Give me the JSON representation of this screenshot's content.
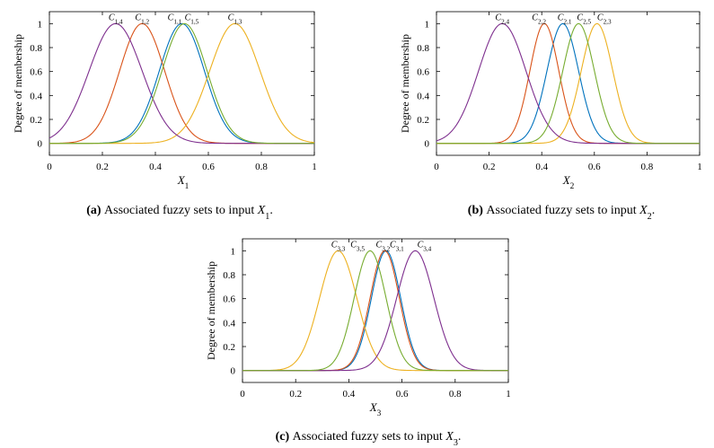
{
  "colors": [
    "#0072BD",
    "#D95319",
    "#EDB120",
    "#7E2F8E",
    "#77AC30"
  ],
  "chart_data": [
    {
      "type": "line",
      "panel_label": "(a)",
      "caption_text": "Associated fuzzy sets to input",
      "caption_var": "X",
      "caption_sub": "1",
      "caption_end": ".",
      "xlabel_var": "X",
      "xlabel_sub": "1",
      "ylabel": "Degree of membership",
      "xlim": [
        0,
        1
      ],
      "ylim": [
        -0.1,
        1.1
      ],
      "xticks": [
        "0",
        "0.2",
        "0.4",
        "0.6",
        "0.8",
        "1"
      ],
      "yticks": [
        "0",
        "0.2",
        "0.4",
        "0.6",
        "0.8",
        "1"
      ],
      "series": [
        {
          "name": "C1,1",
          "center": 0.5,
          "sigma": 0.085,
          "color": "#0072BD",
          "label_main": "C",
          "label_sub": "1,1"
        },
        {
          "name": "C1,2",
          "center": 0.35,
          "sigma": 0.085,
          "color": "#D95319",
          "label_main": "C",
          "label_sub": "1,2"
        },
        {
          "name": "C1,3",
          "center": 0.7,
          "sigma": 0.095,
          "color": "#EDB120",
          "label_main": "C",
          "label_sub": "1,3"
        },
        {
          "name": "C1,4",
          "center": 0.25,
          "sigma": 0.1,
          "color": "#7E2F8E",
          "label_main": "C",
          "label_sub": "1,4"
        },
        {
          "name": "C1,5",
          "center": 0.51,
          "sigma": 0.085,
          "color": "#77AC30",
          "label_main": "C",
          "label_sub": "1,5"
        }
      ]
    },
    {
      "type": "line",
      "panel_label": "(b)",
      "caption_text": "Associated fuzzy sets to input",
      "caption_var": "X",
      "caption_sub": "2",
      "caption_end": ".",
      "xlabel_var": "X",
      "xlabel_sub": "2",
      "ylabel": "Degree of membership",
      "xlim": [
        0,
        1
      ],
      "ylim": [
        -0.1,
        1.1
      ],
      "xticks": [
        "0",
        "0.2",
        "0.4",
        "0.6",
        "0.8",
        "1"
      ],
      "yticks": [
        "0",
        "0.2",
        "0.4",
        "0.6",
        "0.8",
        "1"
      ],
      "series": [
        {
          "name": "C2,1",
          "center": 0.48,
          "sigma": 0.06,
          "color": "#0072BD",
          "label_main": "C",
          "label_sub": "2,1"
        },
        {
          "name": "C2,2",
          "center": 0.41,
          "sigma": 0.055,
          "color": "#D95319",
          "label_main": "C",
          "label_sub": "2,2"
        },
        {
          "name": "C2,3",
          "center": 0.61,
          "sigma": 0.06,
          "color": "#EDB120",
          "label_main": "C",
          "label_sub": "2,3"
        },
        {
          "name": "C2,4",
          "center": 0.25,
          "sigma": 0.09,
          "color": "#7E2F8E",
          "label_main": "C",
          "label_sub": "2,4"
        },
        {
          "name": "C2,5",
          "center": 0.54,
          "sigma": 0.06,
          "color": "#77AC30",
          "label_main": "C",
          "label_sub": "2,5"
        }
      ]
    },
    {
      "type": "line",
      "panel_label": "(c)",
      "caption_text": "Associated fuzzy sets to input",
      "caption_var": "X",
      "caption_sub": "3",
      "caption_end": ".",
      "xlabel_var": "X",
      "xlabel_sub": "3",
      "ylabel": "Degree of membership",
      "xlim": [
        0,
        1
      ],
      "ylim": [
        -0.1,
        1.1
      ],
      "xticks": [
        "0",
        "0.2",
        "0.4",
        "0.6",
        "0.8",
        "1"
      ],
      "yticks": [
        "0",
        "0.2",
        "0.4",
        "0.6",
        "0.8",
        "1"
      ],
      "series": [
        {
          "name": "C3,1",
          "center": 0.54,
          "sigma": 0.055,
          "color": "#0072BD",
          "label_main": "C",
          "label_sub": "3,1"
        },
        {
          "name": "C3,2",
          "center": 0.535,
          "sigma": 0.055,
          "color": "#D95319",
          "label_main": "C",
          "label_sub": "3,2"
        },
        {
          "name": "C3,3",
          "center": 0.36,
          "sigma": 0.07,
          "color": "#EDB120",
          "label_main": "C",
          "label_sub": "3,3"
        },
        {
          "name": "C3,4",
          "center": 0.65,
          "sigma": 0.07,
          "color": "#7E2F8E",
          "label_main": "C",
          "label_sub": "3,4"
        },
        {
          "name": "C3,5",
          "center": 0.48,
          "sigma": 0.06,
          "color": "#77AC30",
          "label_main": "C",
          "label_sub": "3,5"
        }
      ]
    }
  ]
}
